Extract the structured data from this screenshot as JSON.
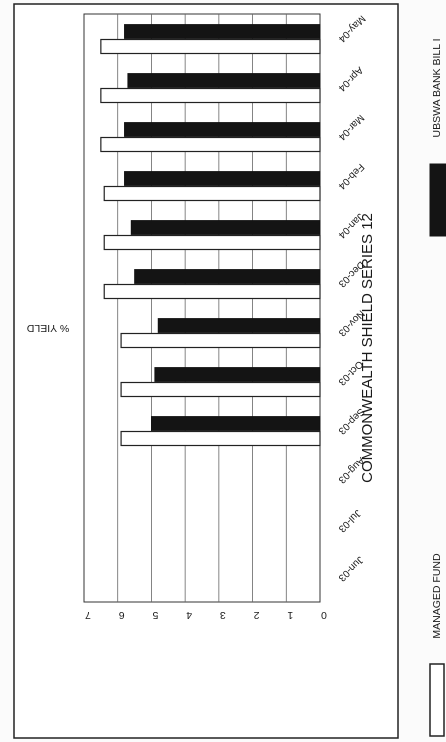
{
  "chart_data": {
    "type": "bar",
    "orientation": "horizontal-bars-rotated-page",
    "title": "COMMONWEALTH SHIELD SERIES 12",
    "ylabel": "% YIELD",
    "ylim": [
      0,
      7
    ],
    "yticks": [
      "0",
      "1",
      "2",
      "3",
      "4",
      "5",
      "6",
      "7"
    ],
    "grid": true,
    "legend_position": "bottom",
    "categories": [
      "Jun-03",
      "Jul-03",
      "Aug-03",
      "Sep-03",
      "Oct-03",
      "Nov-03",
      "Dec-03",
      "Jan-04",
      "Feb-04",
      "Mar-04",
      "Apr-04",
      "May-04"
    ],
    "series": [
      {
        "name": "MANAGED FUND",
        "color": "#ffffff",
        "values": [
          null,
          null,
          null,
          5.9,
          5.9,
          5.9,
          6.4,
          6.4,
          6.4,
          6.5,
          6.5,
          6.5
        ]
      },
      {
        "name": "UBSWA BANK BILL I",
        "color": "#141414",
        "values": [
          null,
          null,
          null,
          5.0,
          4.9,
          4.8,
          5.5,
          5.6,
          5.8,
          5.8,
          5.7,
          5.8
        ]
      }
    ]
  }
}
